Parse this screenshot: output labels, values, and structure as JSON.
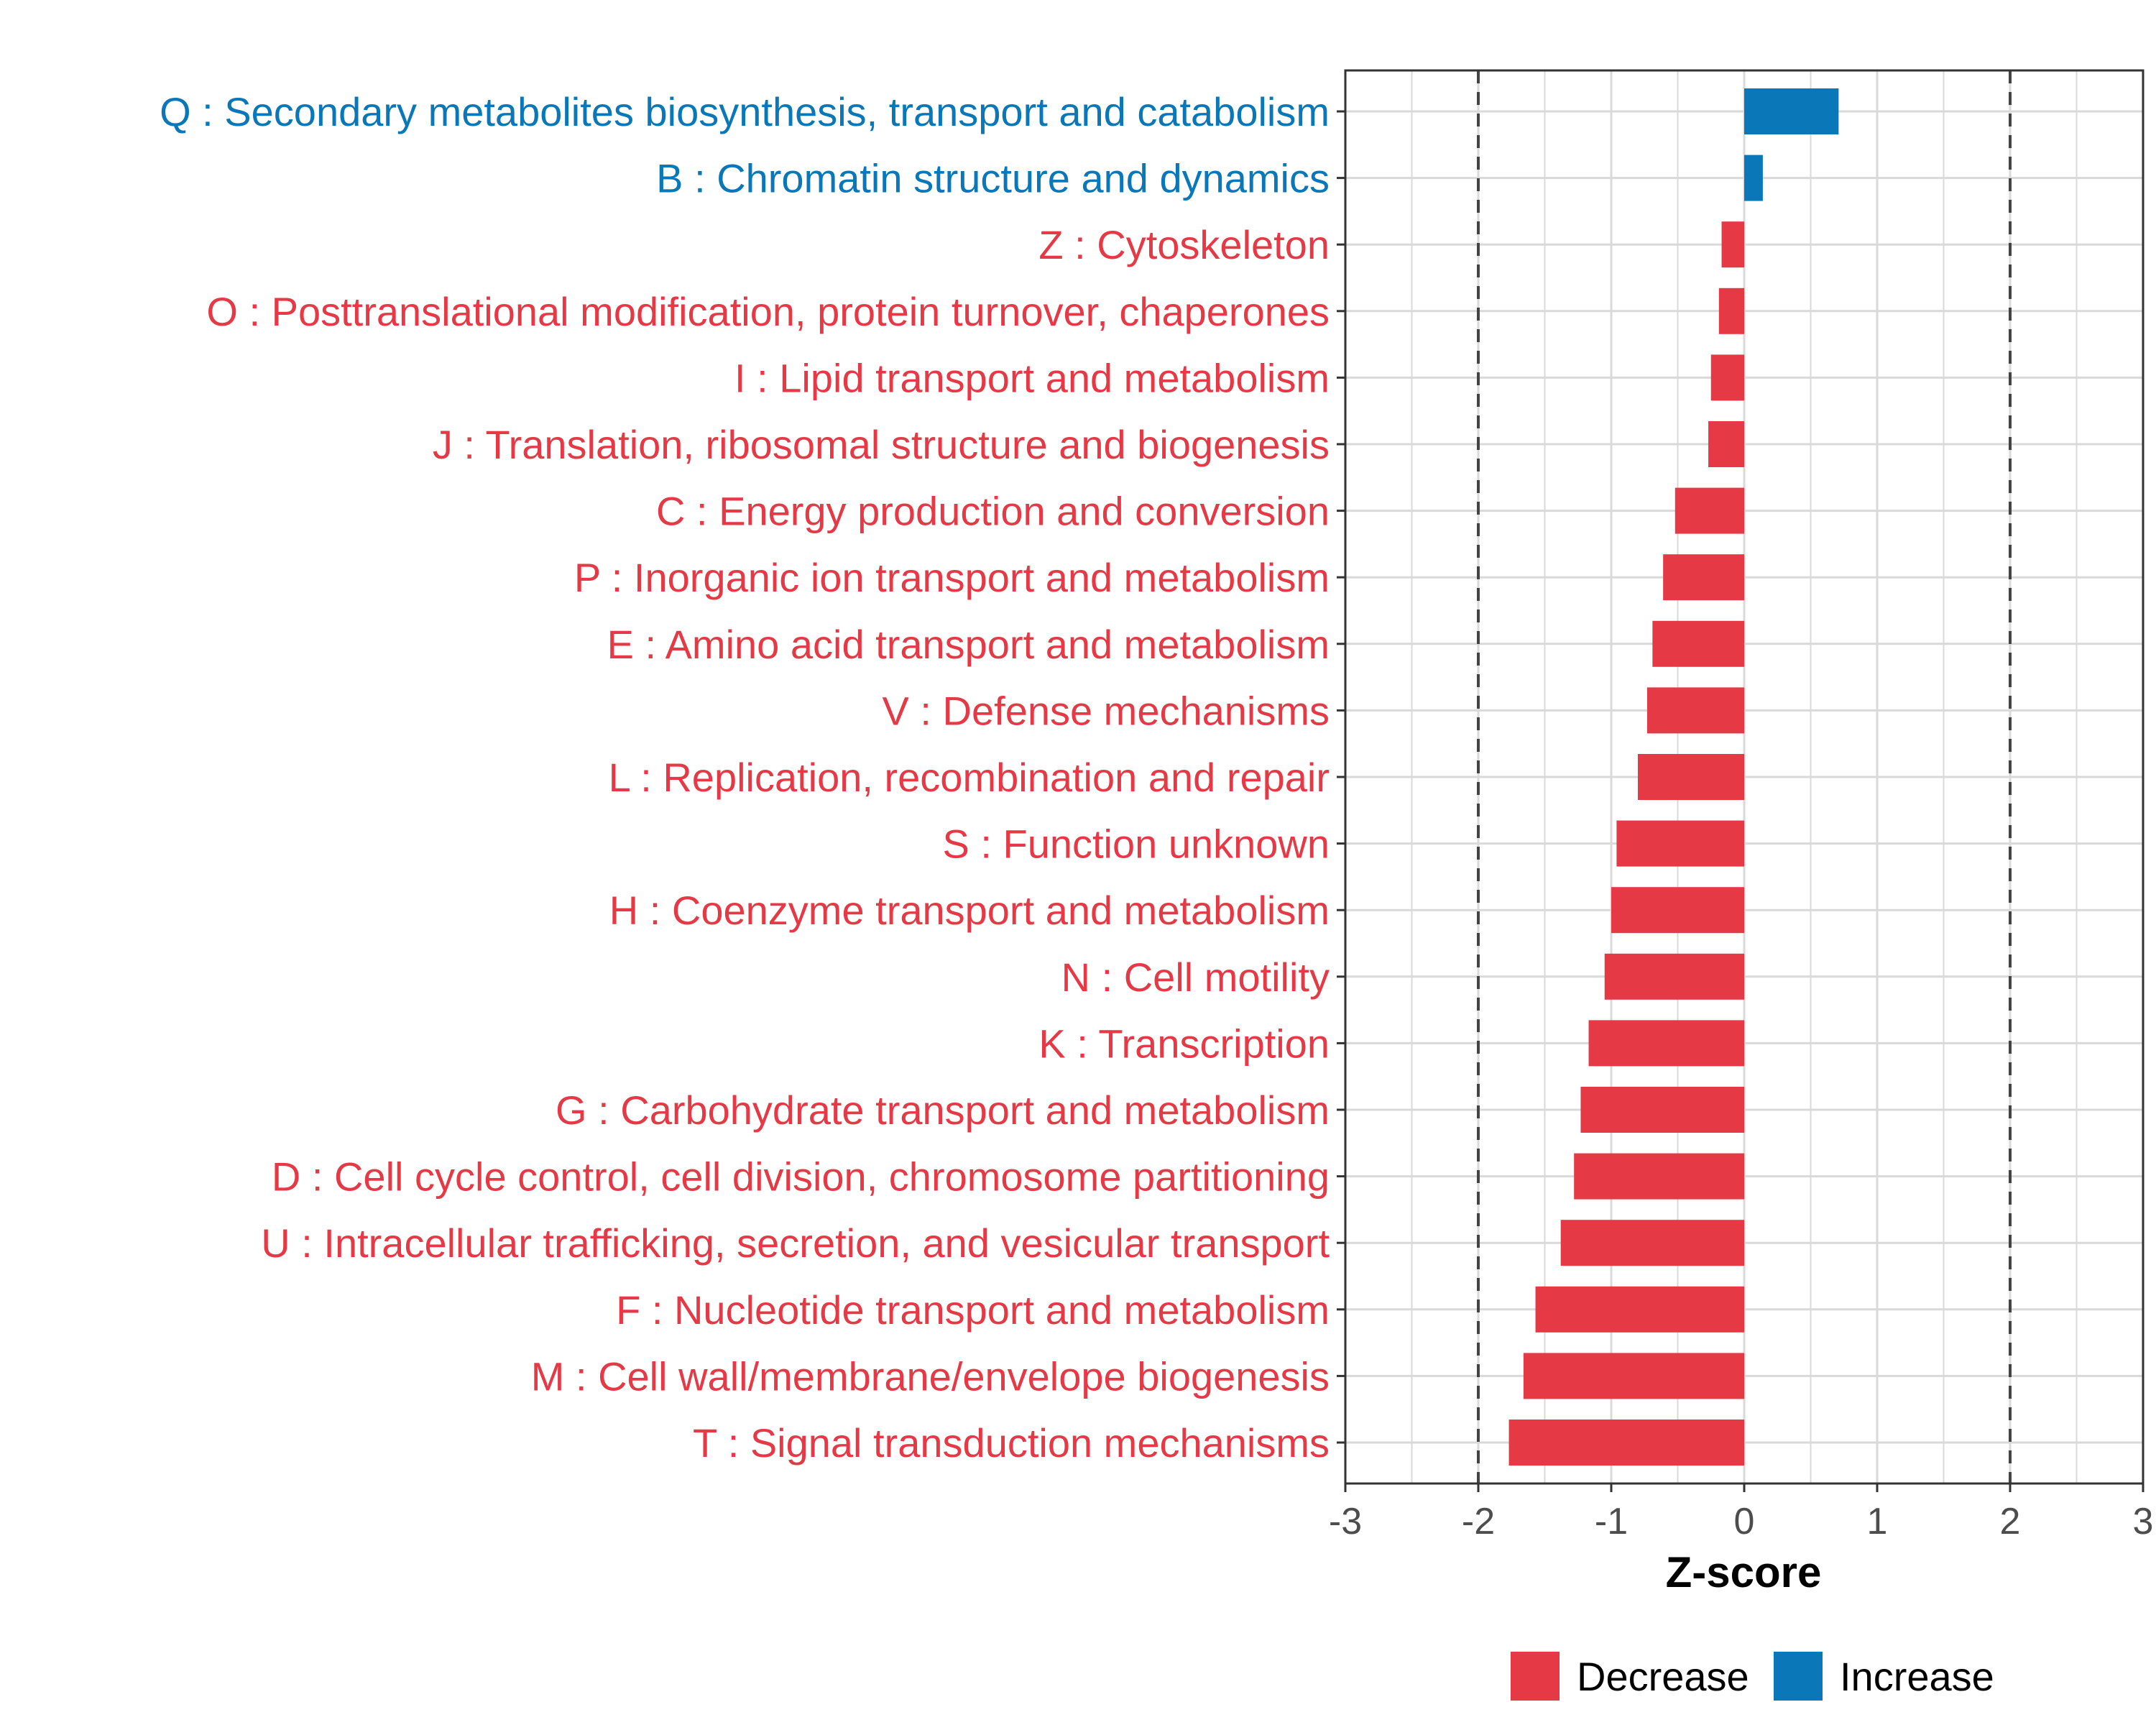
{
  "chart_data": {
    "type": "bar",
    "orientation": "horizontal",
    "title": "",
    "xlabel": "Z-score",
    "ylabel": "",
    "xlim": [
      -3,
      3
    ],
    "xticks": [
      -3,
      -2,
      -1,
      0,
      1,
      2,
      3
    ],
    "xtick_labels": [
      "-3",
      "-2",
      "-1",
      "0",
      "1",
      "2",
      "3"
    ],
    "threshold_lines": [
      -2,
      2
    ],
    "grid": true,
    "legend_position": "bottom",
    "categories": [
      "Q : Secondary metabolites biosynthesis, transport and catabolism",
      "B : Chromatin structure and dynamics",
      "Z : Cytoskeleton",
      "O : Posttranslational modification, protein turnover, chaperones",
      "I : Lipid transport and metabolism",
      "J : Translation, ribosomal structure and biogenesis",
      "C : Energy production and conversion",
      "P : Inorganic ion transport and metabolism",
      "E : Amino acid transport and metabolism",
      "V : Defense mechanisms",
      "L : Replication, recombination and repair",
      "S : Function unknown",
      "H : Coenzyme transport and metabolism",
      "N : Cell motility",
      "K : Transcription",
      "G : Carbohydrate transport and metabolism",
      "D : Cell cycle control, cell division, chromosome partitioning",
      "U : Intracellular trafficking, secretion, and vesicular transport",
      "F : Nucleotide transport and metabolism",
      "M : Cell wall/membrane/envelope biogenesis",
      "T : Signal transduction mechanisms"
    ],
    "values": [
      0.71,
      0.14,
      -0.17,
      -0.19,
      -0.25,
      -0.27,
      -0.52,
      -0.61,
      -0.69,
      -0.73,
      -0.8,
      -0.96,
      -1.0,
      -1.05,
      -1.17,
      -1.23,
      -1.28,
      -1.38,
      -1.57,
      -1.66,
      -1.77
    ],
    "groups": [
      "Increase",
      "Increase",
      "Decrease",
      "Decrease",
      "Decrease",
      "Decrease",
      "Decrease",
      "Decrease",
      "Decrease",
      "Decrease",
      "Decrease",
      "Decrease",
      "Decrease",
      "Decrease",
      "Decrease",
      "Decrease",
      "Decrease",
      "Decrease",
      "Decrease",
      "Decrease",
      "Decrease"
    ],
    "legend": [
      {
        "label": "Decrease",
        "color": "#e63946"
      },
      {
        "label": "Increase",
        "color": "#0a77b8"
      }
    ],
    "colors": {
      "Decrease": "#e63946",
      "Increase": "#0a77b8",
      "grid": "#d9d9d9",
      "axis": "#333333",
      "tick_text": "#4d4d4d",
      "threshold": "#444444"
    }
  }
}
